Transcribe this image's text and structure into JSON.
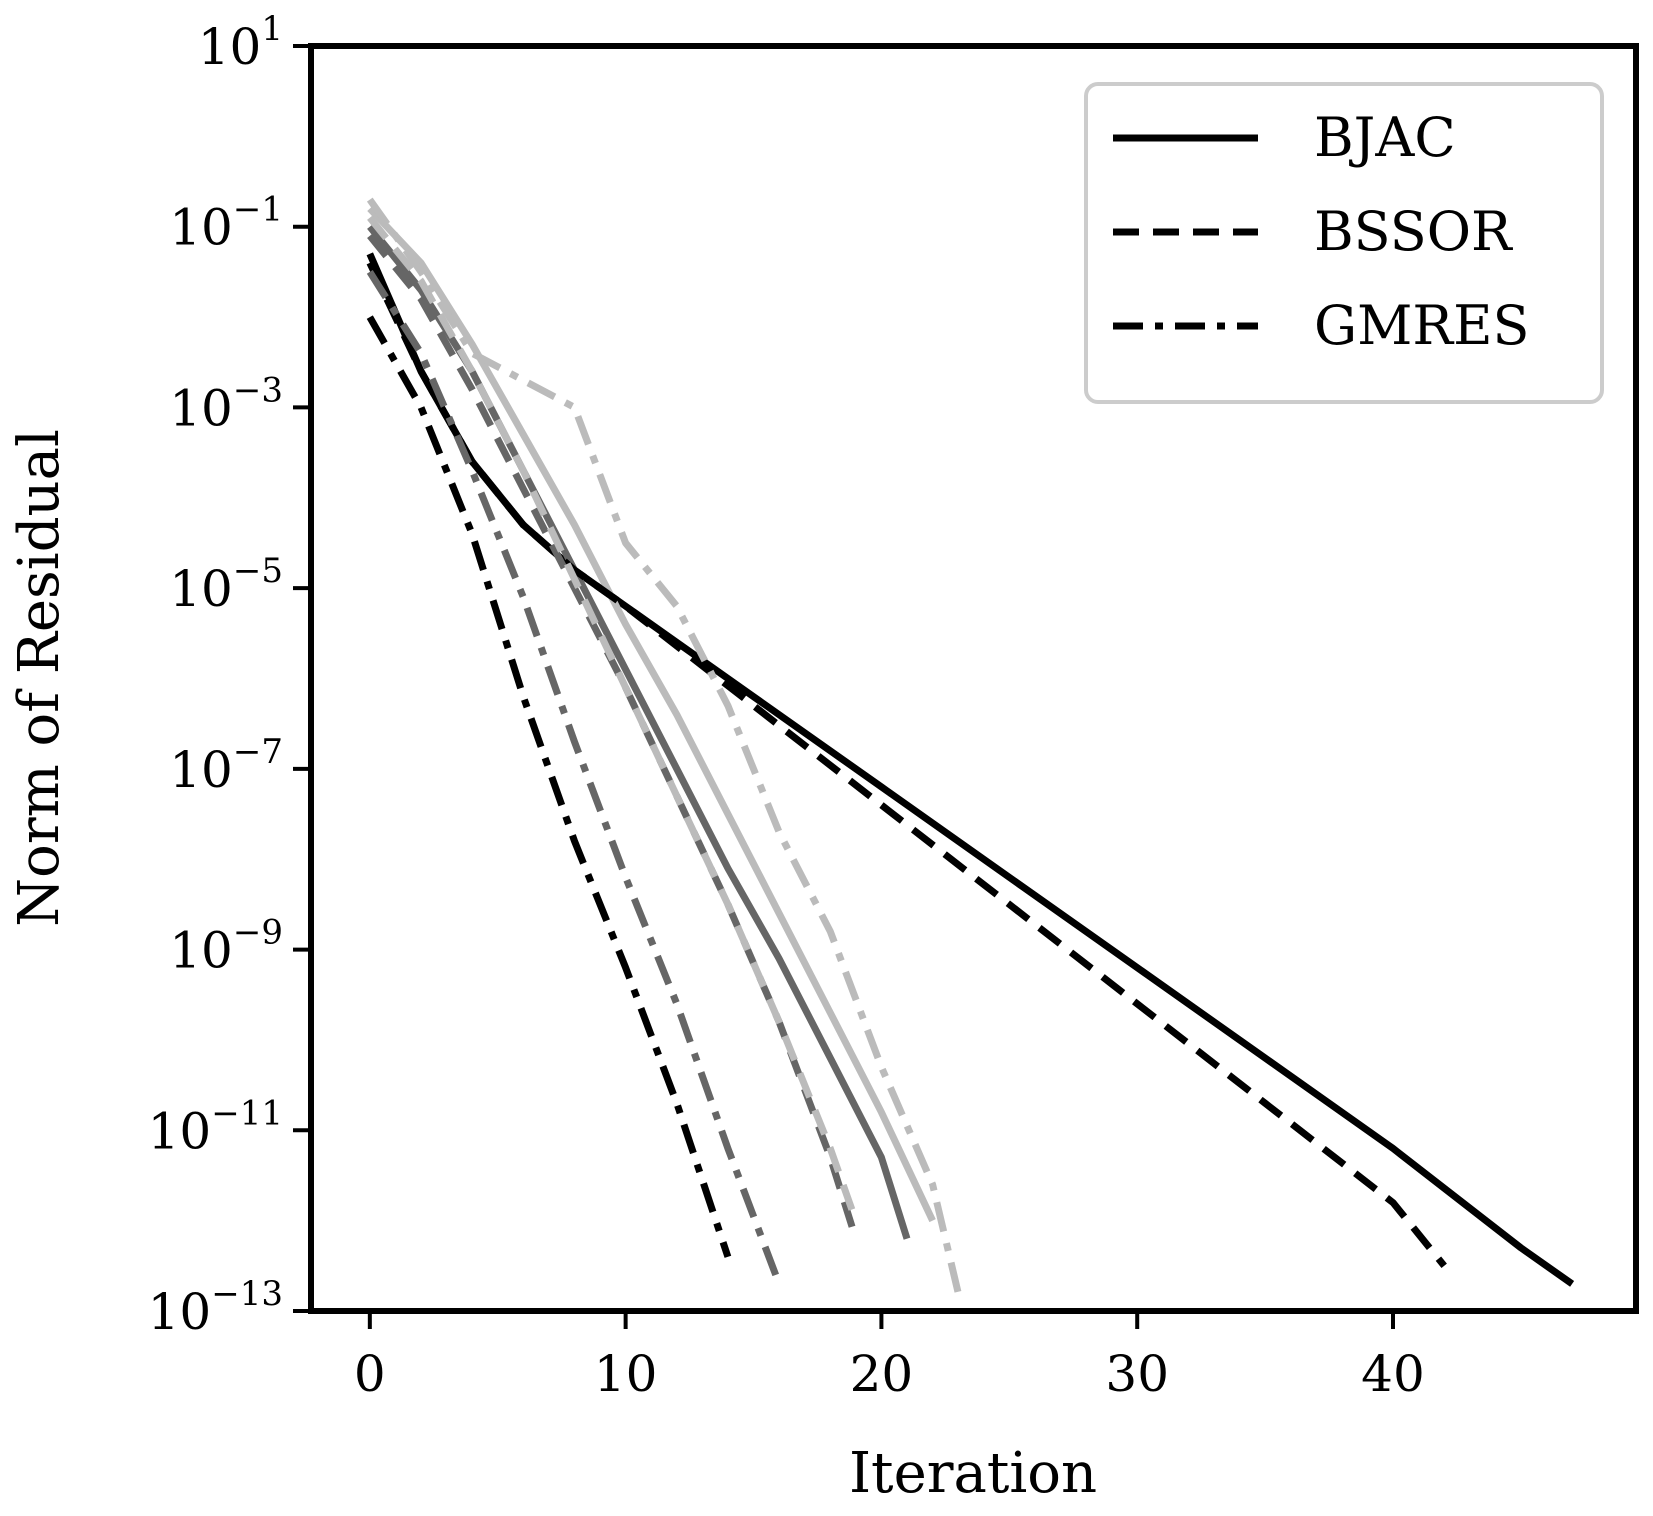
{
  "chart_data": {
    "type": "line",
    "title": "",
    "xlabel": "Iteration",
    "ylabel": "Norm of Residual",
    "xlim": [
      -2.3,
      49.5
    ],
    "ylim_exponent": [
      -13,
      1
    ],
    "yscale": "log",
    "x_ticks": [
      {
        "value": 0,
        "label": "0"
      },
      {
        "value": 10,
        "label": "10"
      },
      {
        "value": 20,
        "label": "20"
      },
      {
        "value": 30,
        "label": "30"
      },
      {
        "value": 40,
        "label": "40"
      }
    ],
    "y_ticks": [
      {
        "exp": 1,
        "base": "10",
        "sup": "1"
      },
      {
        "exp": -1,
        "base": "10",
        "sup": "−1"
      },
      {
        "exp": -3,
        "base": "10",
        "sup": "−3"
      },
      {
        "exp": -5,
        "base": "10",
        "sup": "−5"
      },
      {
        "exp": -7,
        "base": "10",
        "sup": "−7"
      },
      {
        "exp": -9,
        "base": "10",
        "sup": "−9"
      },
      {
        "exp": -11,
        "base": "10",
        "sup": "−11"
      },
      {
        "exp": -13,
        "base": "10",
        "sup": "−13"
      }
    ],
    "grid": false,
    "legend": {
      "position": "top-right",
      "entries": [
        {
          "label": "BJAC",
          "style": "solid"
        },
        {
          "label": "BSSOR",
          "style": "dashed"
        },
        {
          "label": "GMRES",
          "style": "dashdot"
        }
      ]
    },
    "series": [
      {
        "method": "BJAC",
        "style": "solid",
        "color": "#000000",
        "points": [
          [
            0,
            -1.3
          ],
          [
            2,
            -2.6
          ],
          [
            4,
            -3.6
          ],
          [
            6,
            -4.3
          ],
          [
            8,
            -4.8
          ],
          [
            10,
            -5.2
          ],
          [
            15,
            -6.2
          ],
          [
            20,
            -7.2
          ],
          [
            25,
            -8.2
          ],
          [
            30,
            -9.2
          ],
          [
            35,
            -10.2
          ],
          [
            40,
            -11.2
          ],
          [
            45,
            -12.3
          ],
          [
            47,
            -12.7
          ]
        ]
      },
      {
        "method": "BJAC",
        "style": "solid",
        "color": "#666666",
        "points": [
          [
            0,
            -1.0
          ],
          [
            2,
            -1.7
          ],
          [
            4,
            -2.6
          ],
          [
            6,
            -3.7
          ],
          [
            8,
            -4.8
          ],
          [
            10,
            -5.9
          ],
          [
            12,
            -7.0
          ],
          [
            14,
            -8.1
          ],
          [
            16,
            -9.1
          ],
          [
            18,
            -10.2
          ],
          [
            20,
            -11.3
          ],
          [
            21,
            -12.2
          ]
        ]
      },
      {
        "method": "BJAC",
        "style": "solid",
        "color": "#bbbbbb",
        "points": [
          [
            0,
            -0.8
          ],
          [
            2,
            -1.4
          ],
          [
            4,
            -2.3
          ],
          [
            6,
            -3.3
          ],
          [
            8,
            -4.3
          ],
          [
            10,
            -5.4
          ],
          [
            12,
            -6.4
          ],
          [
            14,
            -7.5
          ],
          [
            16,
            -8.6
          ],
          [
            18,
            -9.7
          ],
          [
            20,
            -10.8
          ],
          [
            22,
            -12.0
          ]
        ]
      },
      {
        "method": "BSSOR",
        "style": "dashed",
        "color": "#000000",
        "points": [
          [
            0,
            -1.4
          ],
          [
            2,
            -2.6
          ],
          [
            4,
            -3.6
          ],
          [
            6,
            -4.3
          ],
          [
            8,
            -4.8
          ],
          [
            10,
            -5.2
          ],
          [
            15,
            -6.3
          ],
          [
            20,
            -7.4
          ],
          [
            25,
            -8.5
          ],
          [
            30,
            -9.6
          ],
          [
            35,
            -10.7
          ],
          [
            40,
            -11.8
          ],
          [
            42,
            -12.5
          ]
        ]
      },
      {
        "method": "BSSOR",
        "style": "dashed",
        "color": "#666666",
        "points": [
          [
            0,
            -1.1
          ],
          [
            2,
            -1.8
          ],
          [
            4,
            -2.8
          ],
          [
            6,
            -3.9
          ],
          [
            8,
            -5.0
          ],
          [
            10,
            -6.1
          ],
          [
            12,
            -7.3
          ],
          [
            14,
            -8.5
          ],
          [
            16,
            -9.8
          ],
          [
            18,
            -11.3
          ],
          [
            19,
            -12.2
          ]
        ]
      },
      {
        "method": "BSSOR",
        "style": "dashed",
        "color": "#bbbbbb",
        "points": [
          [
            0,
            -0.9
          ],
          [
            2,
            -1.6
          ],
          [
            4,
            -2.6
          ],
          [
            6,
            -3.7
          ],
          [
            8,
            -4.9
          ],
          [
            10,
            -6.1
          ],
          [
            12,
            -7.3
          ],
          [
            14,
            -8.5
          ],
          [
            16,
            -9.8
          ],
          [
            18,
            -11.2
          ],
          [
            19,
            -12.0
          ]
        ]
      },
      {
        "method": "GMRES",
        "style": "dashdot",
        "color": "#000000",
        "points": [
          [
            0,
            -2.0
          ],
          [
            2,
            -3.0
          ],
          [
            4,
            -4.4
          ],
          [
            6,
            -6.2
          ],
          [
            8,
            -7.8
          ],
          [
            10,
            -9.2
          ],
          [
            12,
            -10.7
          ],
          [
            14,
            -12.4
          ]
        ]
      },
      {
        "method": "GMRES",
        "style": "dashdot",
        "color": "#666666",
        "points": [
          [
            0,
            -1.5
          ],
          [
            2,
            -2.4
          ],
          [
            4,
            -3.7
          ],
          [
            6,
            -5.1
          ],
          [
            8,
            -6.7
          ],
          [
            10,
            -8.2
          ],
          [
            12,
            -9.6
          ],
          [
            14,
            -11.2
          ],
          [
            16,
            -12.7
          ]
        ]
      },
      {
        "method": "GMRES",
        "style": "dashdot",
        "color": "#bbbbbb",
        "points": [
          [
            0,
            -0.7
          ],
          [
            2,
            -1.5
          ],
          [
            4,
            -2.4
          ],
          [
            6,
            -2.7
          ],
          [
            8,
            -3.0
          ],
          [
            10,
            -4.5
          ],
          [
            12,
            -5.2
          ],
          [
            14,
            -6.3
          ],
          [
            16,
            -7.7
          ],
          [
            18,
            -8.8
          ],
          [
            20,
            -10.3
          ],
          [
            22,
            -11.6
          ],
          [
            23,
            -12.8
          ]
        ]
      }
    ]
  }
}
